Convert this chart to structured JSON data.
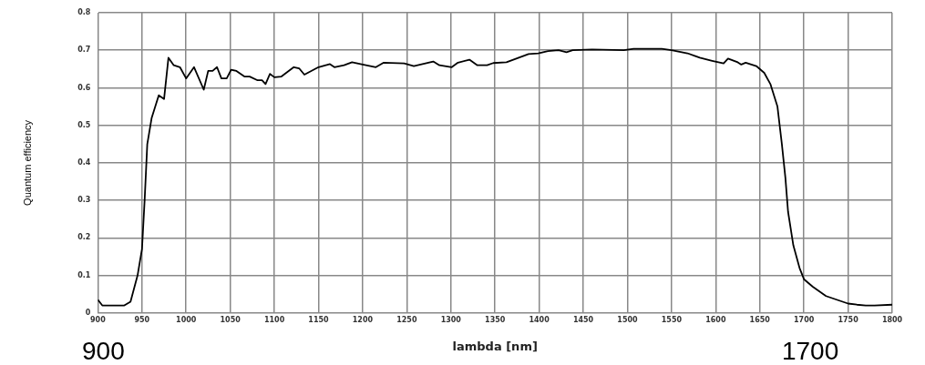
{
  "chart_data": {
    "type": "line",
    "xlabel": "lambda [nm]",
    "ylabel": "Quantum efficiency",
    "x": [
      900,
      905,
      930,
      937,
      945,
      950,
      953,
      956,
      961,
      969,
      975,
      980,
      986,
      993,
      1000,
      1009,
      1020,
      1025,
      1030,
      1035,
      1040,
      1046,
      1051,
      1057,
      1066,
      1072,
      1081,
      1086,
      1090,
      1095,
      1100,
      1108,
      1122,
      1128,
      1134,
      1150,
      1163,
      1168,
      1179,
      1188,
      1200,
      1215,
      1224,
      1247,
      1258,
      1280,
      1287,
      1301,
      1308,
      1321,
      1330,
      1341,
      1348,
      1363,
      1388,
      1399,
      1410,
      1422,
      1431,
      1438,
      1460,
      1496,
      1507,
      1529,
      1539,
      1550,
      1568,
      1582,
      1596,
      1609,
      1614,
      1625,
      1629,
      1634,
      1646,
      1655,
      1662,
      1670,
      1675,
      1679,
      1682,
      1688,
      1695,
      1700,
      1710,
      1725,
      1750,
      1760,
      1770,
      1780,
      1800
    ],
    "series": [
      {
        "color": "#000000",
        "values": [
          0.035,
          0.02,
          0.02,
          0.03,
          0.1,
          0.17,
          0.3,
          0.45,
          0.52,
          0.58,
          0.57,
          0.68,
          0.66,
          0.655,
          0.625,
          0.655,
          0.595,
          0.645,
          0.645,
          0.655,
          0.625,
          0.625,
          0.648,
          0.645,
          0.63,
          0.63,
          0.62,
          0.62,
          0.61,
          0.637,
          0.628,
          0.63,
          0.655,
          0.652,
          0.635,
          0.655,
          0.663,
          0.655,
          0.66,
          0.668,
          0.662,
          0.655,
          0.667,
          0.665,
          0.658,
          0.67,
          0.66,
          0.655,
          0.667,
          0.675,
          0.66,
          0.66,
          0.666,
          0.668,
          0.69,
          0.692,
          0.698,
          0.7,
          0.695,
          0.7,
          0.702,
          0.7,
          0.704,
          0.704,
          0.704,
          0.7,
          0.692,
          0.68,
          0.672,
          0.665,
          0.678,
          0.668,
          0.662,
          0.667,
          0.658,
          0.64,
          0.61,
          0.55,
          0.45,
          0.36,
          0.27,
          0.18,
          0.12,
          0.09,
          0.07,
          0.045,
          0.025,
          0.022,
          0.02,
          0.02,
          0.022
        ]
      }
    ],
    "xlim": [
      900,
      1800
    ],
    "xticks": [
      900,
      950,
      1000,
      1050,
      1100,
      1150,
      1200,
      1250,
      1300,
      1350,
      1400,
      1450,
      1500,
      1550,
      1600,
      1650,
      1700,
      1750,
      1800
    ],
    "ylim": [
      0,
      0.8
    ],
    "yticks": [
      {
        "value": 0,
        "label": "0"
      },
      0.1,
      0.2,
      0.3,
      0.4,
      0.5,
      0.6,
      0.7,
      0.8
    ],
    "grid": true,
    "legend": false,
    "marker": "none",
    "line_style": "solid",
    "annotations": [
      "900",
      "1700"
    ]
  }
}
